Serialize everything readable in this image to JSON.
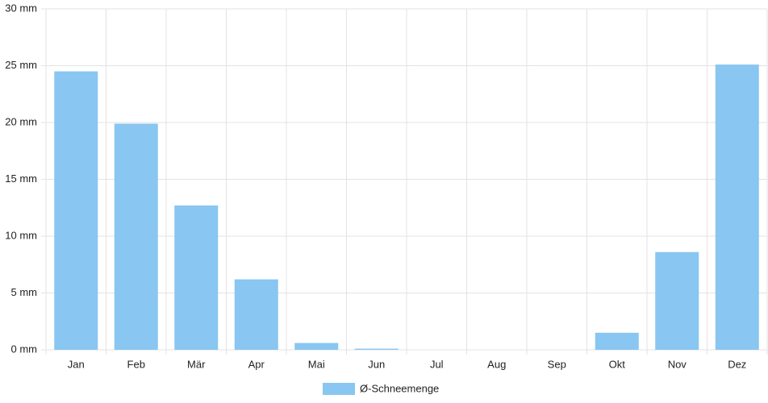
{
  "chart_data": {
    "type": "bar",
    "categories": [
      "Jan",
      "Feb",
      "Mär",
      "Apr",
      "Mai",
      "Jun",
      "Jul",
      "Aug",
      "Sep",
      "Okt",
      "Nov",
      "Dez"
    ],
    "series": [
      {
        "name": "Ø-Schneemenge",
        "color": "#89c6f1",
        "values": [
          24.5,
          19.9,
          12.7,
          6.2,
          0.6,
          0.1,
          0,
          0,
          0,
          1.5,
          8.6,
          25.1
        ]
      }
    ],
    "ylim": [
      0,
      30
    ],
    "yticks": [
      {
        "value": 0,
        "label": "0 mm"
      },
      {
        "value": 5,
        "label": "5 mm"
      },
      {
        "value": 10,
        "label": "10 mm"
      },
      {
        "value": 15,
        "label": "15 mm"
      },
      {
        "value": 20,
        "label": "20 mm"
      },
      {
        "value": 25,
        "label": "25 mm"
      },
      {
        "value": 30,
        "label": "30 mm"
      }
    ],
    "grid": true,
    "legend": "bottom"
  }
}
